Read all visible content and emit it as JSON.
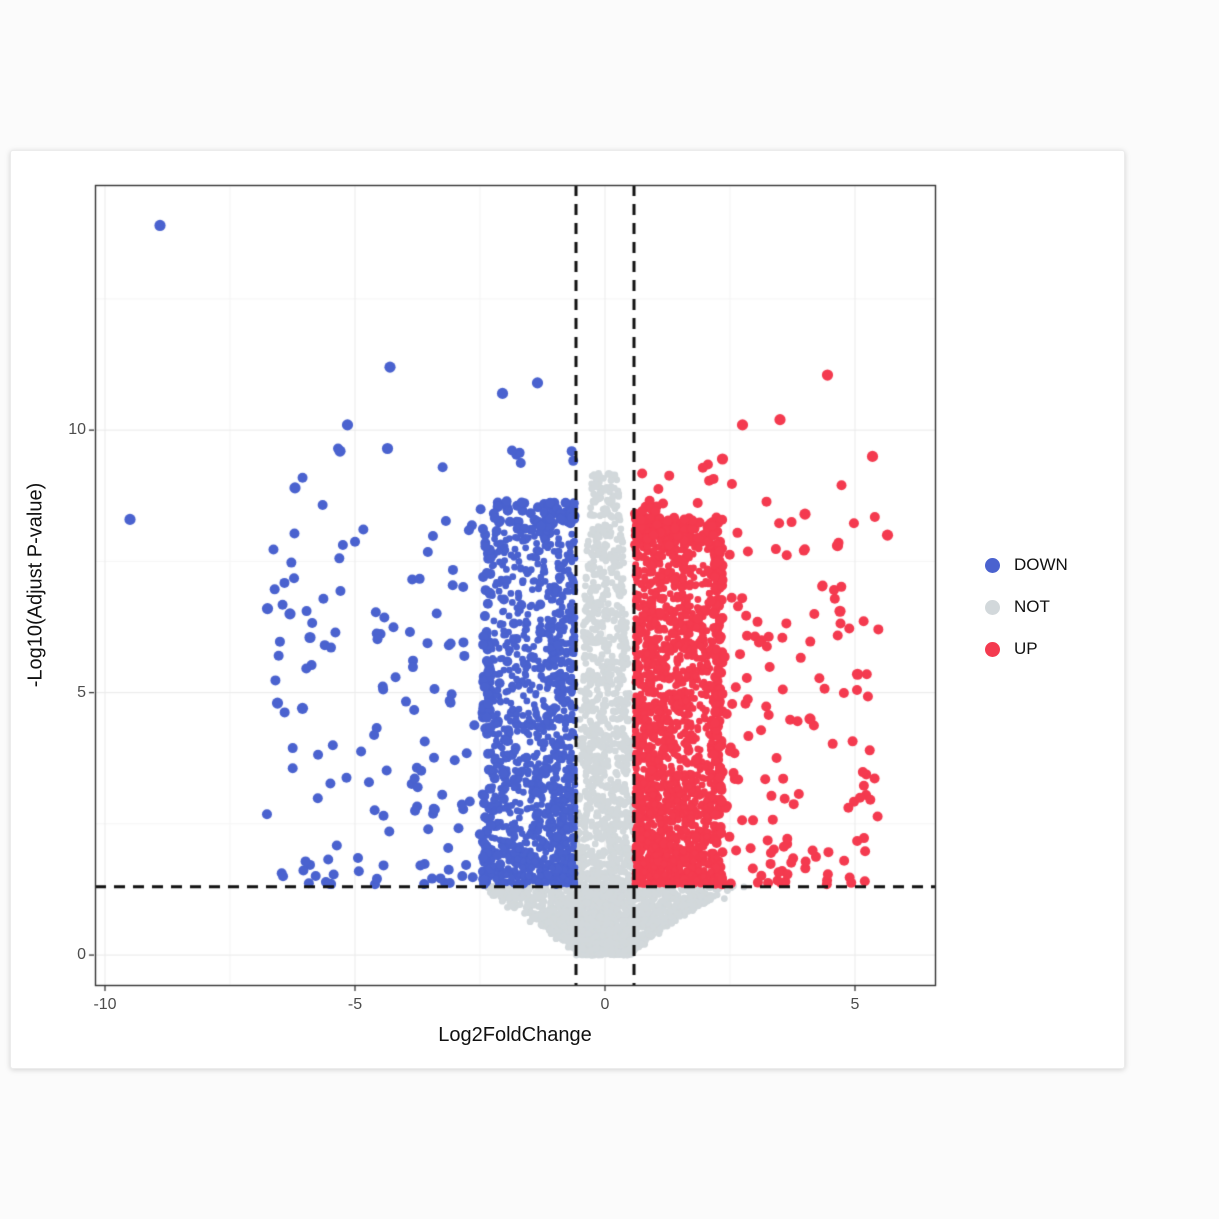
{
  "page": {
    "background": "#fbfbfb",
    "card_background": "#ffffff"
  },
  "chart_data": {
    "type": "scatter",
    "variant": "volcano-plot",
    "title": "",
    "xlabel": "Log2FoldChange",
    "ylabel": "-Log10(Adjust P-value)",
    "xlim": [
      -10.2,
      6.6
    ],
    "ylim": [
      -0.57,
      14.67
    ],
    "x_ticks": {
      "values": [
        -10,
        -5,
        0,
        5
      ],
      "labels": [
        "-10",
        "-5",
        "0",
        "5"
      ]
    },
    "y_ticks": {
      "values": [
        0,
        5,
        10
      ],
      "labels": [
        "0",
        "5",
        "10"
      ]
    },
    "x_minor_ticks": [
      -7.5,
      -2.5,
      2.5
    ],
    "y_minor_ticks": [
      2.5,
      7.5,
      12.5
    ],
    "grid": true,
    "panel_border_color": "#333333",
    "grid_major_color": "#ebebeb",
    "grid_minor_color": "#f5f5f5",
    "thresholds": {
      "log2fc": [
        -0.58,
        0.58
      ],
      "neg_log10_p": 1.3,
      "line_color": "#111111",
      "line_style": "dashed"
    },
    "legend": {
      "position": "right",
      "items": [
        "DOWN",
        "NOT",
        "UP"
      ]
    },
    "point_radius": {
      "dense": 3.4,
      "not": 3.4,
      "scatter": 5.0,
      "highlight": 5.6
    },
    "series": [
      {
        "name": "DOWN",
        "color": "#4a62cf",
        "n": 1500,
        "side": -1,
        "seed": 101,
        "x_start": 0.58,
        "dense_span": 1.85,
        "tail_frac": 0.16,
        "tail_span": 5.9,
        "y_start": 1.35,
        "y_span": 7.3,
        "y_pow": 1.5
      },
      {
        "name": "NOT",
        "color": "#d2d8db",
        "n": 2600,
        "seed": 202,
        "column_halfwidth": 0.58,
        "column_y_max": 9.2,
        "column_frac": 0.55,
        "fan_y_max": 1.32,
        "fan_halfwidth_max": 2.6
      },
      {
        "name": "UP",
        "color": "#f43a4f",
        "n": 2200,
        "side": 1,
        "seed": 303,
        "x_start": 0.58,
        "dense_span": 1.75,
        "tail_frac": 0.13,
        "tail_span": 4.6,
        "y_start": 1.35,
        "y_span": 7.0,
        "y_pow": 1.5
      }
    ],
    "highlight_points": [
      {
        "series": "DOWN",
        "x": -8.9,
        "y": 13.9
      },
      {
        "series": "DOWN",
        "x": -9.5,
        "y": 8.3
      },
      {
        "series": "DOWN",
        "x": -4.3,
        "y": 11.2
      },
      {
        "series": "DOWN",
        "x": -1.35,
        "y": 10.9
      },
      {
        "series": "DOWN",
        "x": -2.05,
        "y": 10.7
      },
      {
        "series": "DOWN",
        "x": -5.15,
        "y": 10.1
      },
      {
        "series": "DOWN",
        "x": -4.35,
        "y": 9.65
      },
      {
        "series": "DOWN",
        "x": -5.3,
        "y": 9.6
      },
      {
        "series": "DOWN",
        "x": -6.2,
        "y": 8.9
      },
      {
        "series": "DOWN",
        "x": -6.75,
        "y": 6.6
      },
      {
        "series": "DOWN",
        "x": -6.3,
        "y": 6.5
      },
      {
        "series": "DOWN",
        "x": -5.9,
        "y": 6.05
      },
      {
        "series": "DOWN",
        "x": -6.55,
        "y": 4.8
      },
      {
        "series": "DOWN",
        "x": -6.05,
        "y": 4.7
      },
      {
        "series": "UP",
        "x": 4.45,
        "y": 11.05
      },
      {
        "series": "UP",
        "x": 3.5,
        "y": 10.2
      },
      {
        "series": "UP",
        "x": 2.75,
        "y": 10.1
      },
      {
        "series": "UP",
        "x": 5.35,
        "y": 9.5
      },
      {
        "series": "UP",
        "x": 2.35,
        "y": 9.45
      },
      {
        "series": "UP",
        "x": 5.65,
        "y": 8.0
      },
      {
        "series": "UP",
        "x": 4.0,
        "y": 8.4
      },
      {
        "series": "UP",
        "x": 4.65,
        "y": 7.8
      },
      {
        "series": "UP",
        "x": 4.7,
        "y": 6.55
      },
      {
        "series": "UP",
        "x": 5.05,
        "y": 5.35
      },
      {
        "series": "UP",
        "x": 4.1,
        "y": 4.5
      }
    ]
  }
}
